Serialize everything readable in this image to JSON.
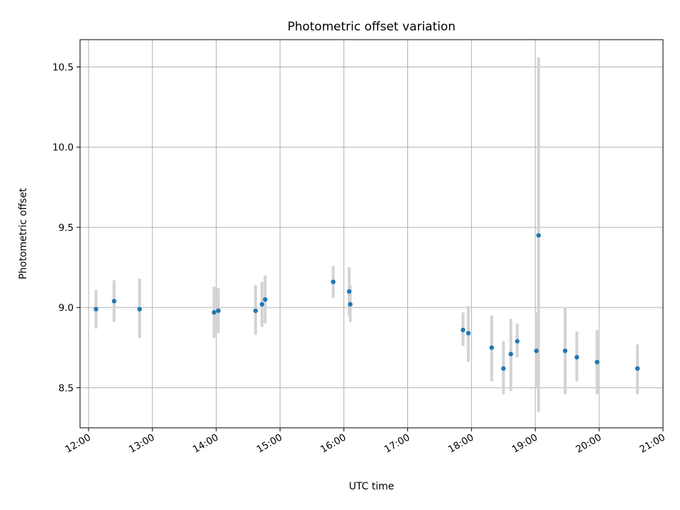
{
  "chart_data": {
    "type": "scatter",
    "title": "Photometric offset variation",
    "xlabel": "UTC time",
    "ylabel": "Photometric offset",
    "x_unit": "time of day (UTC, HH:MM)",
    "xlim": [
      "11:52",
      "21:00"
    ],
    "ylim": [
      8.25,
      10.67
    ],
    "xticks": [
      "12:00",
      "13:00",
      "14:00",
      "15:00",
      "16:00",
      "17:00",
      "18:00",
      "19:00",
      "20:00",
      "21:00"
    ],
    "yticks": [
      "8.5",
      "9.0",
      "9.5",
      "10.0",
      "10.5"
    ],
    "grid": true,
    "point_color": "#1f77b4",
    "errorbar_color": "#d3d3d3",
    "points": [
      {
        "x": "12:07",
        "y": 8.99,
        "ylow": 8.87,
        "yhigh": 9.11
      },
      {
        "x": "12:24",
        "y": 9.04,
        "ylow": 8.91,
        "yhigh": 9.17
      },
      {
        "x": "12:48",
        "y": 8.99,
        "ylow": 8.81,
        "yhigh": 9.18
      },
      {
        "x": "13:58",
        "y": 8.97,
        "ylow": 8.81,
        "yhigh": 9.13
      },
      {
        "x": "14:02",
        "y": 8.98,
        "ylow": 8.84,
        "yhigh": 9.12
      },
      {
        "x": "14:37",
        "y": 8.98,
        "ylow": 8.83,
        "yhigh": 9.14
      },
      {
        "x": "14:43",
        "y": 9.02,
        "ylow": 8.88,
        "yhigh": 9.16
      },
      {
        "x": "14:46",
        "y": 9.05,
        "ylow": 8.9,
        "yhigh": 9.2
      },
      {
        "x": "15:50",
        "y": 9.16,
        "ylow": 9.06,
        "yhigh": 9.26
      },
      {
        "x": "16:05",
        "y": 9.1,
        "ylow": 8.95,
        "yhigh": 9.25
      },
      {
        "x": "16:06",
        "y": 9.02,
        "ylow": 8.91,
        "yhigh": 9.14
      },
      {
        "x": "17:52",
        "y": 8.86,
        "ylow": 8.76,
        "yhigh": 8.97
      },
      {
        "x": "17:57",
        "y": 8.84,
        "ylow": 8.66,
        "yhigh": 9.01
      },
      {
        "x": "18:19",
        "y": 8.75,
        "ylow": 8.54,
        "yhigh": 8.95
      },
      {
        "x": "18:30",
        "y": 8.62,
        "ylow": 8.46,
        "yhigh": 8.79
      },
      {
        "x": "18:37",
        "y": 8.71,
        "ylow": 8.48,
        "yhigh": 8.93
      },
      {
        "x": "18:43",
        "y": 8.79,
        "ylow": 8.69,
        "yhigh": 8.9
      },
      {
        "x": "19:01",
        "y": 8.73,
        "ylow": 8.5,
        "yhigh": 8.97
      },
      {
        "x": "19:03",
        "y": 9.45,
        "ylow": 8.35,
        "yhigh": 10.56
      },
      {
        "x": "19:28",
        "y": 8.73,
        "ylow": 8.46,
        "yhigh": 9.0
      },
      {
        "x": "19:39",
        "y": 8.69,
        "ylow": 8.54,
        "yhigh": 8.85
      },
      {
        "x": "19:58",
        "y": 8.66,
        "ylow": 8.46,
        "yhigh": 8.86
      },
      {
        "x": "20:36",
        "y": 8.62,
        "ylow": 8.46,
        "yhigh": 8.77
      }
    ]
  }
}
